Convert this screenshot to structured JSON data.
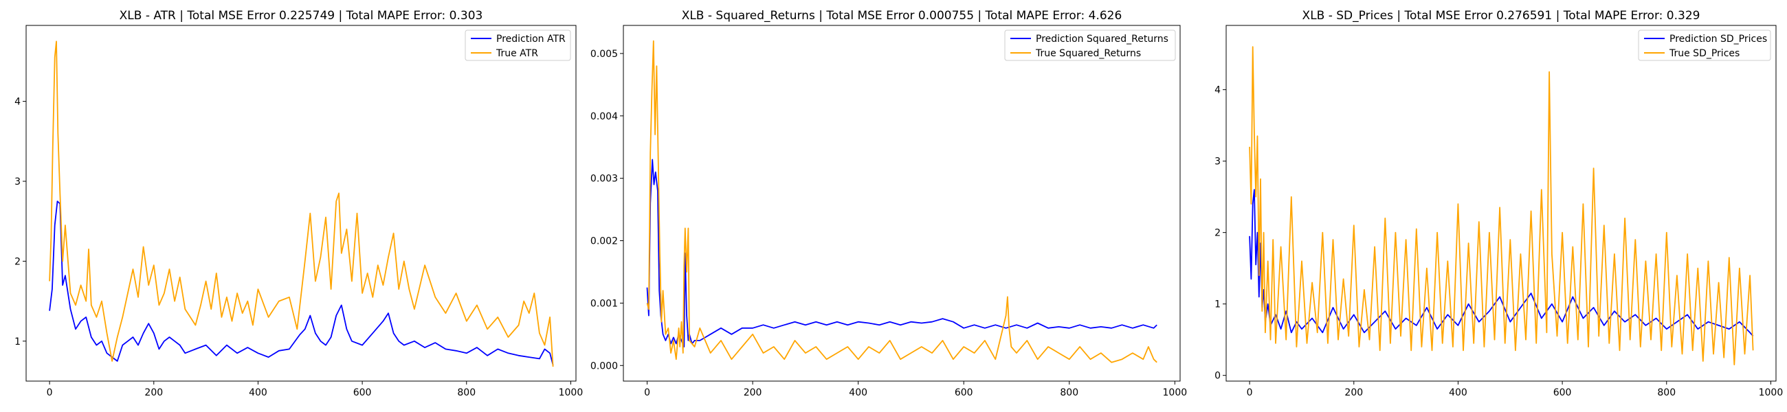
{
  "figure": {
    "background": "#ffffff"
  },
  "chart_data": [
    {
      "type": "line",
      "title": "XLB - ATR | Total MSE Error 0.225749 | Total MAPE Error: 0.303",
      "xlabel": "",
      "ylabel": "",
      "xlim": [
        -45,
        1010
      ],
      "ylim": [
        0.5,
        4.95
      ],
      "xticks": [
        0,
        200,
        400,
        600,
        800,
        1000
      ],
      "yticks": [
        1,
        2,
        3,
        4
      ],
      "ytick_labels": [
        "1",
        "2",
        "3",
        "4"
      ],
      "grid": false,
      "legend_position": "top-right",
      "series": [
        {
          "name": "Prediction ATR",
          "color": "#0000ff",
          "x": [
            0,
            5,
            10,
            15,
            20,
            25,
            30,
            40,
            50,
            60,
            70,
            80,
            90,
            100,
            110,
            120,
            130,
            140,
            150,
            160,
            170,
            180,
            190,
            200,
            210,
            220,
            230,
            240,
            250,
            260,
            280,
            300,
            320,
            340,
            360,
            380,
            400,
            420,
            440,
            460,
            480,
            490,
            500,
            510,
            520,
            530,
            540,
            550,
            560,
            570,
            580,
            600,
            620,
            640,
            650,
            660,
            670,
            680,
            700,
            720,
            740,
            760,
            780,
            800,
            820,
            840,
            860,
            880,
            900,
            920,
            940,
            950,
            960,
            966
          ],
          "y": [
            1.38,
            1.65,
            2.45,
            2.75,
            2.72,
            1.7,
            1.82,
            1.4,
            1.15,
            1.25,
            1.3,
            1.05,
            0.95,
            1.0,
            0.85,
            0.8,
            0.75,
            0.95,
            1.0,
            1.05,
            0.95,
            1.1,
            1.22,
            1.1,
            0.9,
            1.0,
            1.05,
            1.0,
            0.95,
            0.85,
            0.9,
            0.95,
            0.82,
            0.95,
            0.85,
            0.92,
            0.85,
            0.8,
            0.88,
            0.9,
            1.08,
            1.15,
            1.32,
            1.1,
            1.0,
            0.95,
            1.05,
            1.32,
            1.45,
            1.15,
            1.0,
            0.95,
            1.1,
            1.25,
            1.35,
            1.1,
            1.0,
            0.95,
            1.0,
            0.92,
            0.98,
            0.9,
            0.88,
            0.85,
            0.92,
            0.82,
            0.9,
            0.85,
            0.82,
            0.8,
            0.78,
            0.9,
            0.85,
            0.7
          ]
        },
        {
          "name": "True ATR",
          "color": "#ffa500",
          "x": [
            0,
            3,
            6,
            10,
            13,
            16,
            20,
            25,
            30,
            40,
            50,
            60,
            70,
            75,
            80,
            90,
            100,
            110,
            120,
            130,
            140,
            150,
            160,
            170,
            180,
            190,
            200,
            210,
            220,
            230,
            240,
            250,
            260,
            270,
            280,
            290,
            300,
            310,
            320,
            330,
            340,
            350,
            360,
            370,
            380,
            390,
            400,
            420,
            440,
            460,
            475,
            490,
            500,
            510,
            520,
            530,
            540,
            550,
            555,
            560,
            570,
            580,
            590,
            600,
            610,
            620,
            630,
            640,
            650,
            660,
            670,
            680,
            690,
            700,
            720,
            740,
            760,
            780,
            800,
            820,
            840,
            860,
            880,
            900,
            910,
            920,
            930,
            940,
            950,
            960,
            966
          ],
          "y": [
            1.75,
            2.3,
            3.4,
            4.55,
            4.75,
            3.6,
            2.85,
            2.0,
            2.45,
            1.6,
            1.45,
            1.7,
            1.5,
            2.15,
            1.45,
            1.3,
            1.5,
            1.1,
            0.75,
            1.05,
            1.3,
            1.6,
            1.9,
            1.55,
            2.18,
            1.7,
            1.95,
            1.45,
            1.6,
            1.9,
            1.5,
            1.8,
            1.4,
            1.3,
            1.2,
            1.45,
            1.75,
            1.4,
            1.85,
            1.3,
            1.55,
            1.25,
            1.6,
            1.35,
            1.5,
            1.2,
            1.65,
            1.3,
            1.5,
            1.55,
            1.15,
            2.0,
            2.6,
            1.75,
            2.05,
            2.55,
            1.65,
            2.75,
            2.85,
            2.1,
            2.4,
            1.75,
            2.6,
            1.6,
            1.85,
            1.55,
            1.95,
            1.7,
            2.05,
            2.35,
            1.65,
            2.0,
            1.65,
            1.4,
            1.95,
            1.55,
            1.35,
            1.6,
            1.25,
            1.45,
            1.15,
            1.3,
            1.05,
            1.2,
            1.5,
            1.35,
            1.6,
            1.1,
            0.95,
            1.3,
            0.68
          ]
        }
      ]
    },
    {
      "type": "line",
      "title": "XLB - Squared_Returns | Total MSE Error 0.000755 | Total MAPE Error: 4.626",
      "xlabel": "",
      "ylabel": "",
      "xlim": [
        -45,
        1010
      ],
      "ylim": [
        -0.00025,
        0.00545
      ],
      "xticks": [
        0,
        200,
        400,
        600,
        800,
        1000
      ],
      "yticks": [
        0,
        0.001,
        0.002,
        0.003,
        0.004,
        0.005
      ],
      "ytick_labels": [
        "0.000",
        "0.001",
        "0.002",
        "0.003",
        "0.004",
        "0.005"
      ],
      "grid": false,
      "legend_position": "top-right",
      "series": [
        {
          "name": "Prediction Squared_Returns",
          "color": "#0000ff",
          "x": [
            0,
            3,
            6,
            10,
            13,
            16,
            20,
            23,
            26,
            30,
            35,
            40,
            45,
            50,
            55,
            60,
            65,
            70,
            72,
            75,
            78,
            80,
            85,
            90,
            100,
            110,
            120,
            140,
            160,
            180,
            200,
            220,
            240,
            260,
            280,
            300,
            320,
            340,
            360,
            380,
            400,
            420,
            440,
            460,
            480,
            500,
            520,
            540,
            560,
            580,
            600,
            620,
            640,
            660,
            680,
            700,
            720,
            740,
            760,
            780,
            800,
            820,
            840,
            860,
            880,
            900,
            920,
            940,
            960,
            966
          ],
          "y": [
            0.00125,
            0.0008,
            0.0026,
            0.0033,
            0.0029,
            0.0031,
            0.0028,
            0.0012,
            0.0008,
            0.0005,
            0.0004,
            0.0005,
            0.00035,
            0.00045,
            0.00035,
            0.0005,
            0.0004,
            0.0003,
            0.0018,
            0.0008,
            0.0004,
            0.0005,
            0.00035,
            0.0004,
            0.0004,
            0.00045,
            0.0005,
            0.0006,
            0.0005,
            0.0006,
            0.0006,
            0.00065,
            0.0006,
            0.00065,
            0.0007,
            0.00065,
            0.0007,
            0.00065,
            0.0007,
            0.00065,
            0.0007,
            0.00068,
            0.00065,
            0.0007,
            0.00065,
            0.0007,
            0.00068,
            0.0007,
            0.00075,
            0.0007,
            0.0006,
            0.00065,
            0.0006,
            0.00065,
            0.0006,
            0.00065,
            0.0006,
            0.00068,
            0.0006,
            0.00062,
            0.0006,
            0.00065,
            0.0006,
            0.00062,
            0.0006,
            0.00065,
            0.0006,
            0.00065,
            0.0006,
            0.00065
          ]
        },
        {
          "name": "True Squared_Returns",
          "color": "#ffa500",
          "x": [
            0,
            3,
            6,
            9,
            12,
            15,
            18,
            21,
            24,
            27,
            30,
            35,
            40,
            45,
            50,
            55,
            60,
            62,
            65,
            68,
            70,
            72,
            75,
            78,
            80,
            90,
            100,
            120,
            140,
            160,
            180,
            200,
            220,
            240,
            260,
            280,
            300,
            320,
            340,
            360,
            380,
            400,
            420,
            440,
            460,
            480,
            500,
            520,
            540,
            560,
            580,
            600,
            620,
            640,
            660,
            680,
            683,
            686,
            690,
            700,
            720,
            740,
            760,
            780,
            800,
            820,
            840,
            860,
            880,
            900,
            920,
            940,
            950,
            960,
            966
          ],
          "y": [
            0.001,
            0.0009,
            0.0034,
            0.0044,
            0.0052,
            0.0037,
            0.0048,
            0.0033,
            0.0018,
            0.0007,
            0.0012,
            0.0005,
            0.0006,
            0.0002,
            0.0004,
            0.0001,
            0.0006,
            0.0003,
            0.0007,
            0.0002,
            0.0016,
            0.0022,
            0.0015,
            0.0022,
            0.0004,
            0.0003,
            0.0006,
            0.0002,
            0.0004,
            0.0001,
            0.0003,
            0.0005,
            0.0002,
            0.0003,
            0.0001,
            0.0004,
            0.0002,
            0.0003,
            0.0001,
            0.0002,
            0.0003,
            0.0001,
            0.0003,
            0.0002,
            0.0004,
            0.0001,
            0.0002,
            0.0003,
            0.0002,
            0.0004,
            0.0001,
            0.0003,
            0.0002,
            0.0004,
            0.0001,
            0.0008,
            0.0011,
            0.0006,
            0.0003,
            0.0002,
            0.0004,
            0.0001,
            0.0003,
            0.0002,
            0.0001,
            0.0003,
            0.0001,
            0.0002,
            5e-05,
            0.0001,
            0.0002,
            0.0001,
            0.0003,
            0.0001,
            5e-05
          ]
        }
      ]
    },
    {
      "type": "line",
      "title": "XLB - SD_Prices | Total MSE Error 0.276591 | Total MAPE Error: 0.329",
      "xlabel": "",
      "ylabel": "",
      "xlim": [
        -45,
        1010
      ],
      "ylim": [
        -0.08,
        4.9
      ],
      "xticks": [
        0,
        200,
        400,
        600,
        800,
        1000
      ],
      "yticks": [
        0,
        1,
        2,
        3,
        4
      ],
      "ytick_labels": [
        "0",
        "1",
        "2",
        "3",
        "4"
      ],
      "grid": false,
      "legend_position": "top-right",
      "series": [
        {
          "name": "Prediction SD_Prices",
          "color": "#0000ff",
          "x": [
            0,
            3,
            6,
            9,
            12,
            15,
            18,
            21,
            24,
            27,
            30,
            35,
            40,
            50,
            60,
            70,
            80,
            90,
            100,
            120,
            140,
            160,
            180,
            200,
            220,
            240,
            260,
            280,
            300,
            320,
            340,
            360,
            380,
            400,
            420,
            440,
            460,
            480,
            500,
            520,
            540,
            560,
            580,
            600,
            620,
            640,
            660,
            680,
            700,
            720,
            740,
            760,
            780,
            800,
            820,
            840,
            860,
            880,
            900,
            920,
            940,
            960,
            966
          ],
          "y": [
            1.95,
            1.35,
            2.4,
            2.6,
            1.55,
            2.0,
            1.1,
            1.85,
            0.95,
            1.2,
            0.75,
            1.0,
            0.7,
            0.85,
            0.65,
            0.9,
            0.6,
            0.75,
            0.65,
            0.8,
            0.6,
            0.95,
            0.65,
            0.85,
            0.6,
            0.75,
            0.9,
            0.65,
            0.8,
            0.7,
            0.95,
            0.65,
            0.85,
            0.7,
            1.0,
            0.75,
            0.9,
            1.1,
            0.75,
            0.95,
            1.15,
            0.8,
            1.0,
            0.75,
            1.1,
            0.8,
            0.95,
            0.7,
            0.9,
            0.75,
            0.85,
            0.7,
            0.8,
            0.65,
            0.75,
            0.85,
            0.65,
            0.75,
            0.7,
            0.65,
            0.75,
            0.6,
            0.55
          ]
        },
        {
          "name": "True SD_Prices",
          "color": "#ffa500",
          "x": [
            0,
            3,
            6,
            9,
            12,
            15,
            18,
            21,
            24,
            27,
            30,
            35,
            40,
            45,
            50,
            60,
            70,
            80,
            90,
            100,
            110,
            120,
            130,
            140,
            150,
            160,
            170,
            180,
            190,
            200,
            210,
            220,
            230,
            240,
            250,
            260,
            270,
            280,
            290,
            300,
            310,
            320,
            330,
            340,
            350,
            360,
            370,
            380,
            390,
            400,
            410,
            420,
            430,
            440,
            450,
            460,
            470,
            480,
            490,
            500,
            510,
            520,
            530,
            540,
            550,
            560,
            570,
            575,
            580,
            590,
            600,
            610,
            620,
            630,
            640,
            650,
            660,
            670,
            680,
            690,
            700,
            710,
            720,
            730,
            740,
            750,
            760,
            770,
            780,
            790,
            800,
            810,
            820,
            830,
            840,
            850,
            860,
            870,
            880,
            890,
            900,
            910,
            920,
            930,
            940,
            950,
            960,
            966
          ],
          "y": [
            3.2,
            2.4,
            4.6,
            3.4,
            2.5,
            3.35,
            1.4,
            2.75,
            0.9,
            2.0,
            0.6,
            1.6,
            0.5,
            1.9,
            0.45,
            1.8,
            0.5,
            2.5,
            0.4,
            1.6,
            0.45,
            1.3,
            0.6,
            2.0,
            0.45,
            1.9,
            0.5,
            1.35,
            0.55,
            2.1,
            0.4,
            1.2,
            0.5,
            1.8,
            0.35,
            2.2,
            0.45,
            2.0,
            0.55,
            1.9,
            0.35,
            2.05,
            0.4,
            1.5,
            0.35,
            2.0,
            0.45,
            1.6,
            0.4,
            2.4,
            0.35,
            1.85,
            0.45,
            2.15,
            0.4,
            2.0,
            0.5,
            2.35,
            0.45,
            1.9,
            0.35,
            1.7,
            0.5,
            2.3,
            0.45,
            2.6,
            0.6,
            4.25,
            1.7,
            0.55,
            2.0,
            0.45,
            1.8,
            0.5,
            2.4,
            0.4,
            2.9,
            0.55,
            2.1,
            0.45,
            1.7,
            0.35,
            2.2,
            0.5,
            1.9,
            0.4,
            1.6,
            0.5,
            1.7,
            0.35,
            2.0,
            0.4,
            1.4,
            0.3,
            1.7,
            0.35,
            1.5,
            0.2,
            1.6,
            0.3,
            1.3,
            0.25,
            1.65,
            0.15,
            1.5,
            0.3,
            1.4,
            0.35
          ]
        }
      ]
    }
  ]
}
